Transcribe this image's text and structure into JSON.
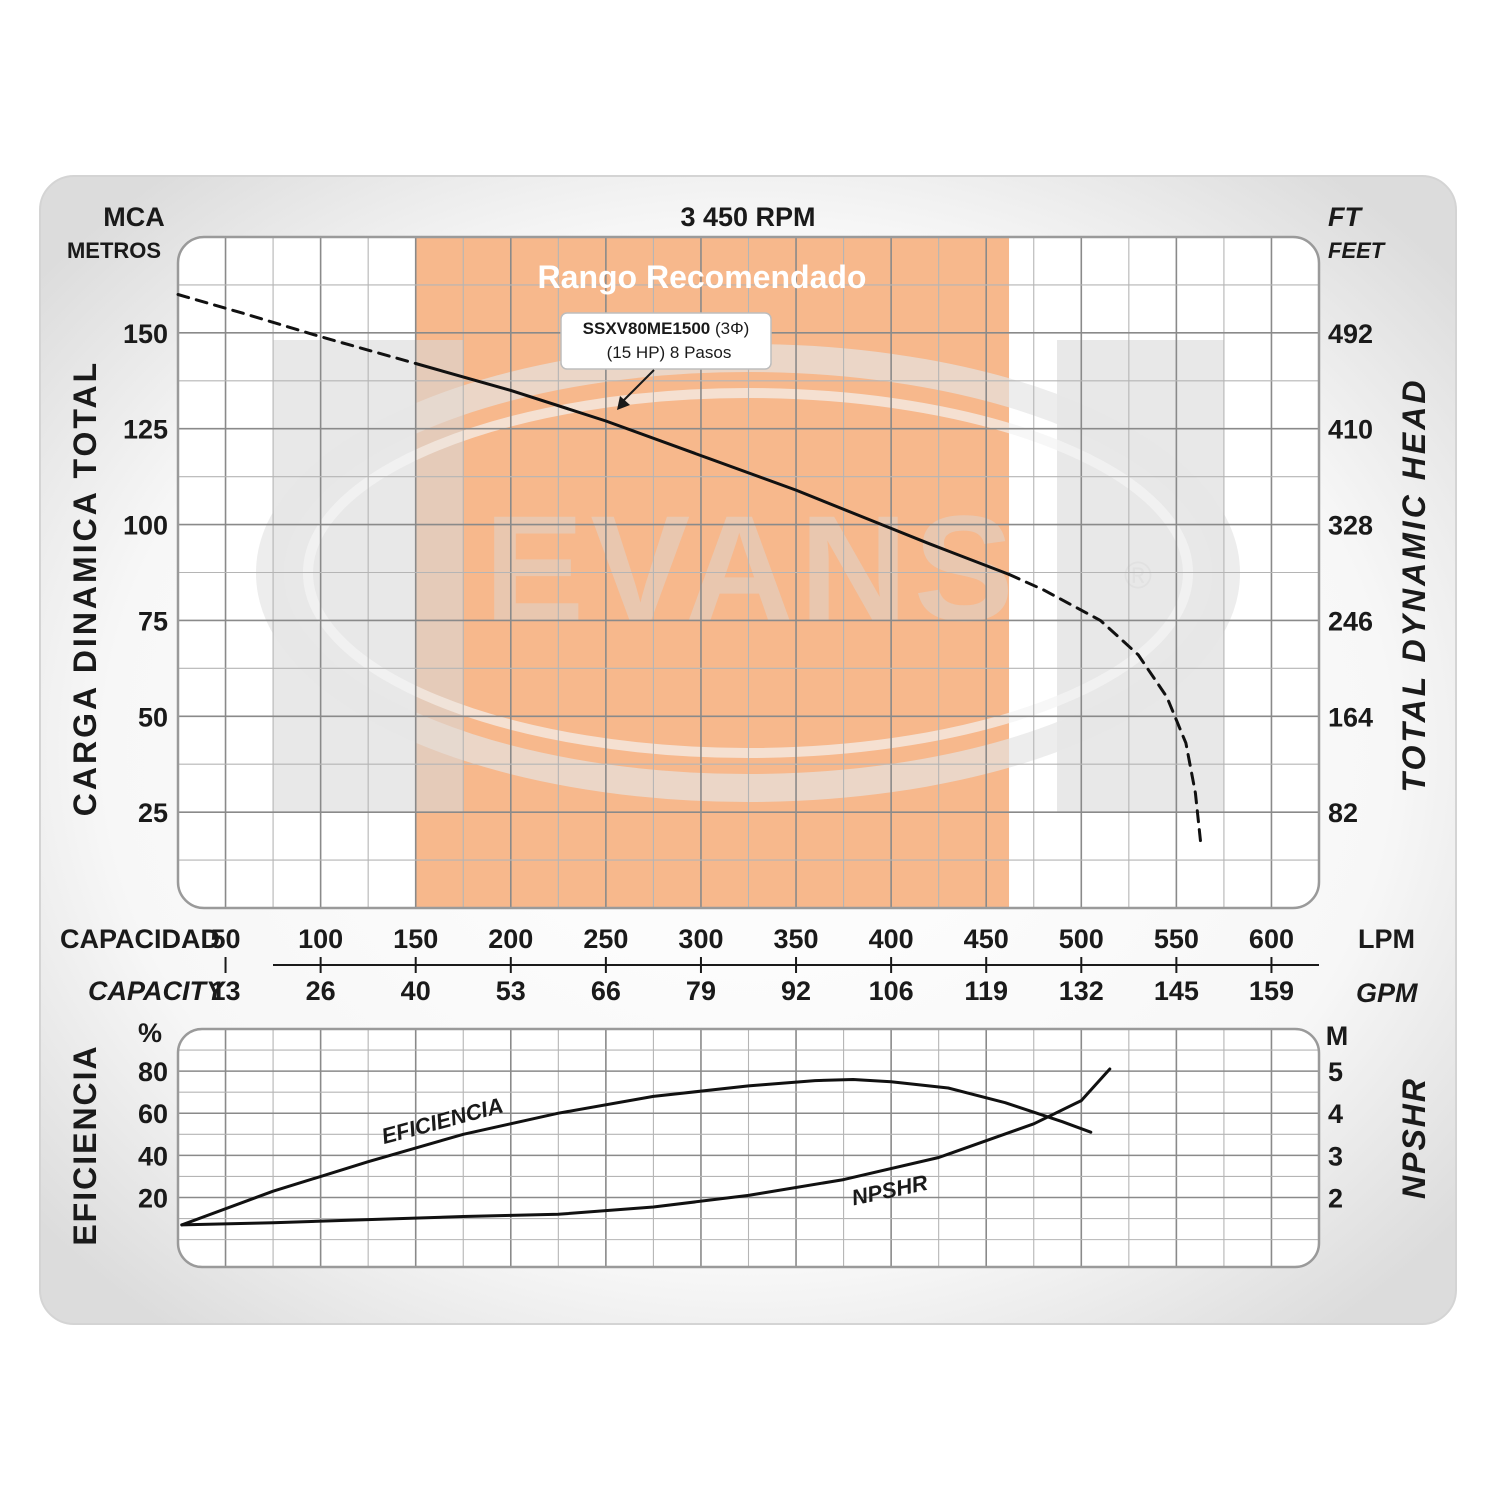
{
  "chart_data": [
    {
      "type": "line",
      "title": "3 450 RPM",
      "left_unit": "MCA",
      "left_unit_sub": "METROS",
      "right_unit": "FT",
      "right_unit_sub": "FEET",
      "ylabel": "CARGA DINAMICA TOTAL",
      "ylabel_right": "TOTAL DYNAMIC HEAD",
      "xlabel": "CAPACIDAD",
      "xlabel_unit": "LPM",
      "xlabel_secondary": "CAPACITY",
      "xlabel_secondary_unit": "GPM",
      "x_ticks": [
        50,
        100,
        150,
        200,
        250,
        300,
        350,
        400,
        450,
        500,
        550,
        600
      ],
      "x_ticks_gpm": [
        13,
        26,
        40,
        53,
        66,
        79,
        92,
        106,
        119,
        132,
        145,
        159
      ],
      "y_ticks": [
        25,
        50,
        75,
        100,
        125,
        150
      ],
      "y_ticks_ft": [
        82,
        164,
        246,
        328,
        410,
        492
      ],
      "xlim": [
        25,
        625
      ],
      "ylim": [
        0,
        175
      ],
      "recommended_range": {
        "label": "Rango Recomendado",
        "x": [
          150,
          462
        ],
        "color": "#f7b88c"
      },
      "annotation": {
        "model": "SSXV80ME1500",
        "phase": "(3Φ)",
        "detail": "(15 HP) 8 Pasos",
        "points_to": [
          225,
          131
        ]
      },
      "watermark": "EVANS",
      "series": [
        {
          "style": "dashed",
          "points": [
            [
              25,
              160
            ],
            [
              60,
              155
            ],
            [
              100,
              149
            ],
            [
              150,
              142
            ]
          ]
        },
        {
          "style": "solid",
          "points": [
            [
              150,
              142
            ],
            [
              200,
              135
            ],
            [
              250,
              127
            ],
            [
              300,
              118
            ],
            [
              350,
              109
            ],
            [
              400,
              99
            ],
            [
              420,
              95
            ],
            [
              462,
              87
            ]
          ]
        },
        {
          "style": "dashed",
          "points": [
            [
              462,
              87
            ],
            [
              480,
              83
            ],
            [
              510,
              75
            ],
            [
              530,
              66
            ],
            [
              545,
              55
            ],
            [
              555,
              43
            ],
            [
              560,
              30
            ],
            [
              563,
              16
            ]
          ]
        }
      ]
    },
    {
      "type": "line",
      "ylabel": "EFICIENCIA",
      "left_unit": "%",
      "ylabel_right": "NPSHR",
      "right_unit": "M",
      "y_ticks": [
        20,
        40,
        60,
        80
      ],
      "y_ticks_right": [
        2,
        3,
        4,
        5
      ],
      "ylim": [
        -13,
        100
      ],
      "series": [
        {
          "name": "EFICIENCIA",
          "label_at": [
            165,
            53
          ],
          "points": [
            [
              27,
              7
            ],
            [
              75,
              23
            ],
            [
              125,
              37
            ],
            [
              175,
              50
            ],
            [
              225,
              60
            ],
            [
              275,
              68
            ],
            [
              325,
              73
            ],
            [
              360,
              75.5
            ],
            [
              380,
              76
            ],
            [
              400,
              75
            ],
            [
              430,
              72
            ],
            [
              460,
              65
            ],
            [
              490,
              56
            ],
            [
              505,
              51
            ]
          ]
        },
        {
          "name": "NPSHR",
          "label_at": [
            400,
            20
          ],
          "points": [
            [
              27,
              7
            ],
            [
              75,
              8
            ],
            [
              125,
              9.5
            ],
            [
              175,
              11
            ],
            [
              225,
              12
            ],
            [
              275,
              15.5
            ],
            [
              325,
              21
            ],
            [
              375,
              28.5
            ],
            [
              425,
              39
            ],
            [
              475,
              55
            ],
            [
              500,
              66
            ],
            [
              515,
              81
            ]
          ]
        }
      ]
    }
  ]
}
